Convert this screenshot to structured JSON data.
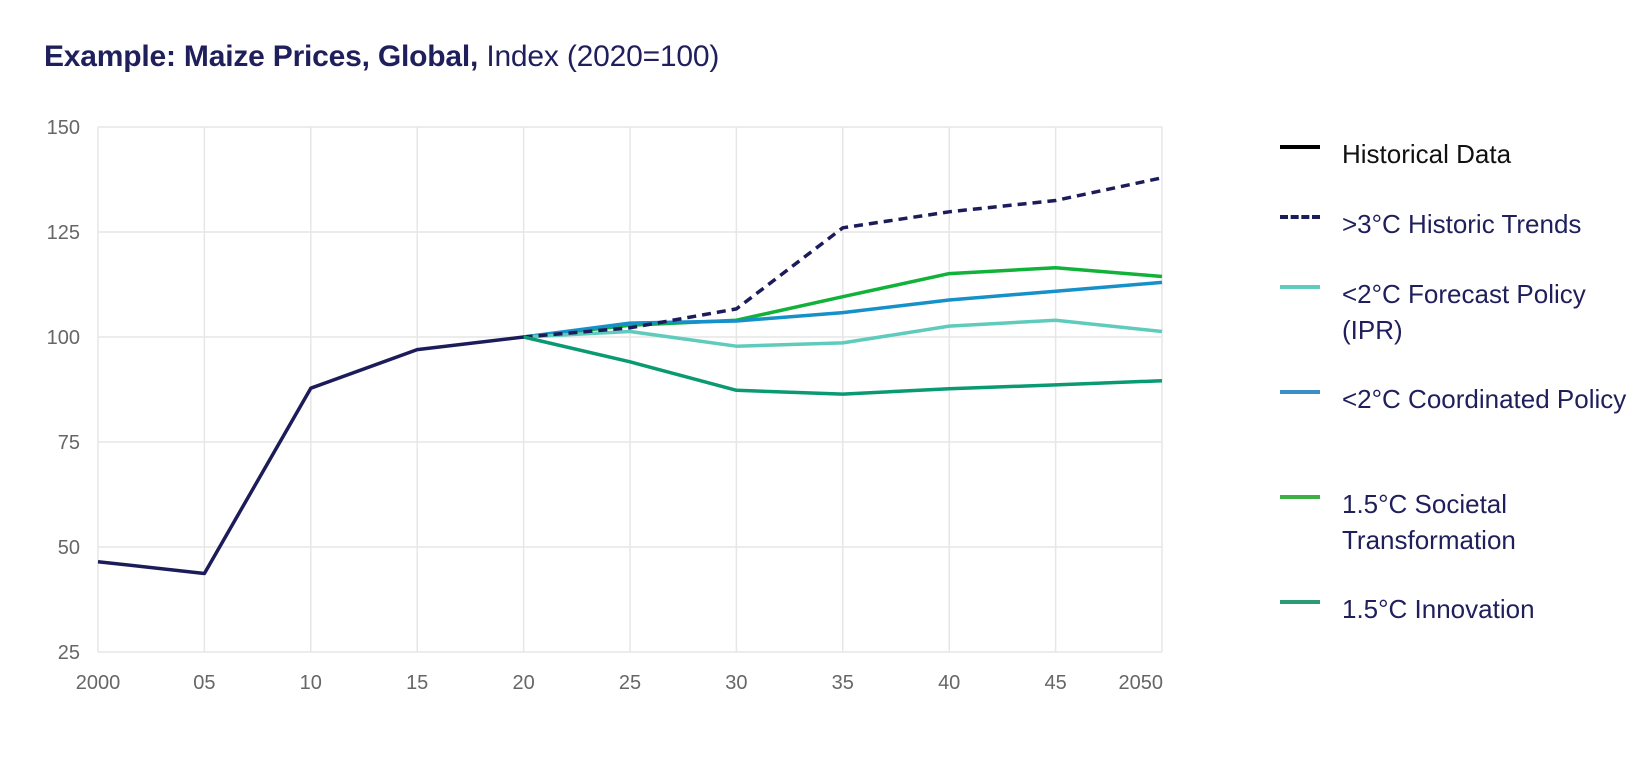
{
  "title": {
    "bold": "Example: Maize Prices, Global,",
    "normal": "Index (2020=100)"
  },
  "colors": {
    "grid": "#e6e6e6",
    "tick_text": "#666666",
    "title_text": "#1f1f5c"
  },
  "chart_data": {
    "type": "line",
    "title": "Example: Maize Prices, Global, Index (2020=100)",
    "x": [
      2000,
      2005,
      2010,
      2015,
      2020,
      2025,
      2030,
      2035,
      2040,
      2045,
      2050
    ],
    "x_tick_labels": [
      "2000",
      "05",
      "10",
      "15",
      "20",
      "25",
      "30",
      "35",
      "40",
      "45",
      "2050"
    ],
    "ylim": [
      25,
      150
    ],
    "y_ticks": [
      25,
      50,
      75,
      100,
      125,
      150
    ],
    "grid": true,
    "legend_position": "right",
    "series": [
      {
        "name": "Historical Data",
        "color": "#1c1c5a",
        "legend_color": "#000000",
        "style": "solid",
        "x": [
          2000,
          2005,
          2010,
          2015,
          2020
        ],
        "values": [
          46.5,
          43.7,
          87.8,
          97.0,
          100.0
        ]
      },
      {
        "name": ">3°C Historic Trends",
        "color": "#1c1c5a",
        "legend_color": "#1c1c5a",
        "style": "dashed",
        "x": [
          2020,
          2025,
          2030,
          2035,
          2040,
          2045,
          2050
        ],
        "values": [
          100.0,
          102.2,
          106.7,
          126.0,
          129.8,
          132.5,
          137.9
        ]
      },
      {
        "name": "<2°C Forecast Policy (IPR)",
        "color": "#5fcbbd",
        "legend_color": "#5fcbbd",
        "style": "solid",
        "x": [
          2020,
          2025,
          2030,
          2035,
          2040,
          2045,
          2050
        ],
        "values": [
          100.0,
          101.3,
          97.8,
          98.6,
          102.6,
          104.0,
          101.3
        ]
      },
      {
        "name": "<2°C Coordinated Policy",
        "color": "#1590c9",
        "legend_color": "#3a8fc6",
        "style": "solid",
        "x": [
          2020,
          2025,
          2030,
          2035,
          2040,
          2045,
          2050
        ],
        "values": [
          100.0,
          103.3,
          103.8,
          105.8,
          108.8,
          110.9,
          113.0
        ]
      },
      {
        "name": "1.5°C Societal Transformation",
        "color": "#10b23a",
        "legend_color": "#3cb043",
        "style": "solid",
        "x": [
          2020,
          2025,
          2030,
          2035,
          2040,
          2045,
          2050
        ],
        "values": [
          100.0,
          102.8,
          104.0,
          109.6,
          115.1,
          116.5,
          114.4
        ]
      },
      {
        "name": "1.5°C Innovation",
        "color": "#0a9a72",
        "legend_color": "#2d9a76",
        "style": "solid",
        "x": [
          2020,
          2025,
          2030,
          2035,
          2040,
          2045,
          2050
        ],
        "values": [
          100.0,
          94.1,
          87.3,
          86.4,
          87.7,
          88.6,
          89.6
        ]
      }
    ]
  }
}
